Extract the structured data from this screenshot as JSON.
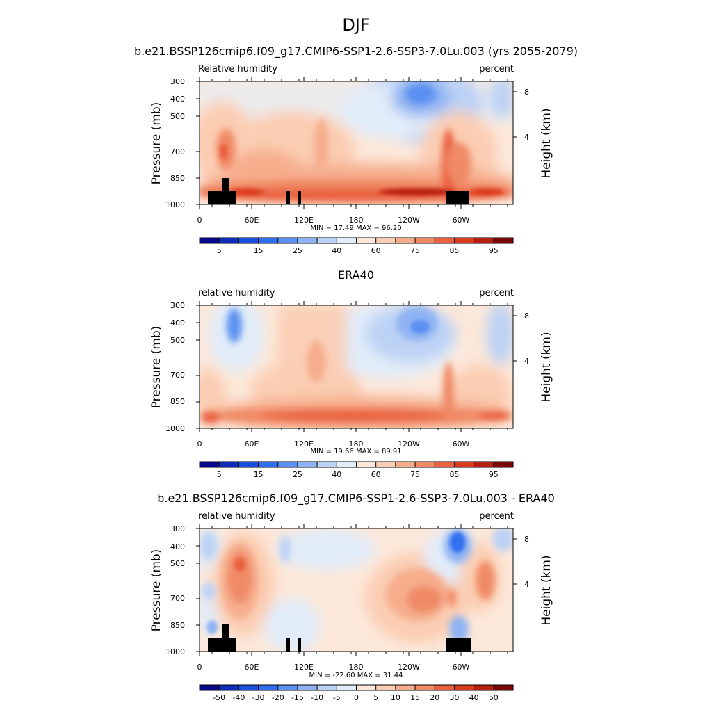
{
  "figure": {
    "main_title": "DJF",
    "case_title": "b.e21.BSSP126cmip6.f09_g17.CMIP6-SSP1-2.6-SSP3-7.0Lu.003 (yrs 2055-2079)"
  },
  "chart_data": [
    {
      "type": "heatmap",
      "title": "",
      "left_label": "Relative humidity",
      "right_label": "percent",
      "ylabel": "Pressure (mb)",
      "ylabel_right": "Height (km)",
      "x_ticks": [
        "0",
        "60E",
        "120E",
        "180",
        "120W",
        "60W"
      ],
      "y_ticks": [
        "300",
        "400",
        "500",
        "700",
        "850",
        "1000"
      ],
      "y_right_ticks": [
        "8",
        "4"
      ],
      "stats": "MIN =  17.49  MAX =  96.20",
      "colorbar_labels": [
        "5",
        "15",
        "25",
        "40",
        "60",
        "75",
        "85",
        "95"
      ],
      "min": 17.49,
      "max": 96.2
    },
    {
      "type": "heatmap",
      "title": "ERA40",
      "left_label": "relative humidity",
      "right_label": "percent",
      "ylabel": "Pressure (mb)",
      "ylabel_right": "Height (km)",
      "x_ticks": [
        "0",
        "60E",
        "120E",
        "180",
        "120W",
        "60W"
      ],
      "y_ticks": [
        "300",
        "400",
        "500",
        "700",
        "850",
        "1000"
      ],
      "y_right_ticks": [
        "8",
        "4"
      ],
      "stats": "MIN =  19.66  MAX =  89.91",
      "colorbar_labels": [
        "5",
        "15",
        "25",
        "40",
        "60",
        "75",
        "85",
        "95"
      ],
      "min": 19.66,
      "max": 89.91
    },
    {
      "type": "heatmap",
      "title": "b.e21.BSSP126cmip6.f09_g17.CMIP6-SSP1-2.6-SSP3-7.0Lu.003 - ERA40",
      "left_label": "relative humidity",
      "right_label": "percent",
      "ylabel": "Pressure (mb)",
      "ylabel_right": "Height (km)",
      "x_ticks": [
        "0",
        "60E",
        "120E",
        "180",
        "120W",
        "60W"
      ],
      "y_ticks": [
        "300",
        "400",
        "500",
        "700",
        "850",
        "1000"
      ],
      "y_right_ticks": [
        "8",
        "4"
      ],
      "stats": "MIN = -22.60  MAX =  31.44",
      "colorbar_labels": [
        "-50",
        "-40",
        "-30",
        "-20",
        "-15",
        "-10",
        "-5",
        "0",
        "5",
        "10",
        "15",
        "20",
        "30",
        "40",
        "50"
      ],
      "min": -22.6,
      "max": 31.44
    }
  ],
  "colors": {
    "abs_scale": [
      "#08088a",
      "#0e2dbb",
      "#1a4fde",
      "#3070f0",
      "#5b91f2",
      "#8fb2f2",
      "#bcd2f5",
      "#e1ecf9",
      "#fce8da",
      "#fbcdb2",
      "#f6ad8c",
      "#f08a66",
      "#e96140",
      "#db3b1c",
      "#b61f10",
      "#7a0706"
    ],
    "diff_scale": [
      "#08088a",
      "#0e2dbb",
      "#1a4fde",
      "#3070f0",
      "#5b91f2",
      "#8fb2f2",
      "#bcd2f5",
      "#e1ecf9",
      "#fce8da",
      "#fbcdb2",
      "#f6ad8c",
      "#f08a66",
      "#e96140",
      "#db3b1c",
      "#b61f10",
      "#7a0706"
    ],
    "topography": "#000000"
  }
}
